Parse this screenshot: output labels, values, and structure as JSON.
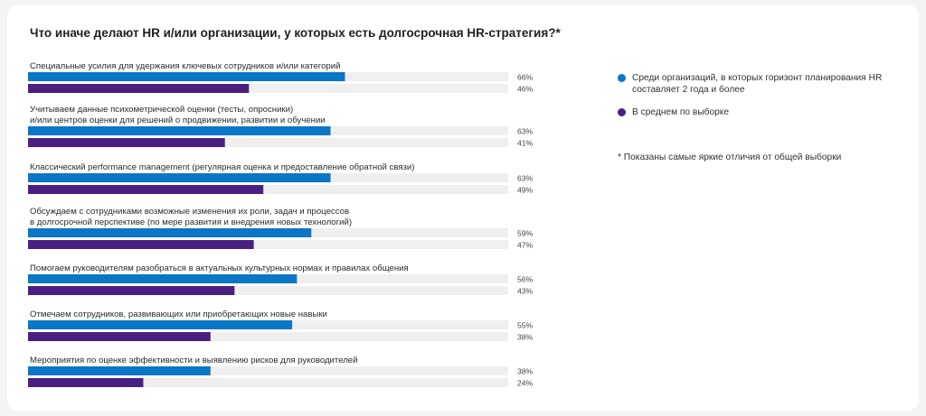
{
  "title": "Что иначе делают HR и/или организации, у которых есть долгосрочная HR-стратегия?*",
  "footnote": "* Показаны самые яркие отличия от общей выборки",
  "colors": {
    "blue": "#0a76c6",
    "purple": "#4b1f82",
    "track": "#efefef"
  },
  "chart_data": {
    "type": "bar",
    "orientation": "horizontal",
    "xlim": [
      0,
      100
    ],
    "legend_position": "right",
    "categories": [
      [
        "Специальные усилия для удержания ключевых сотрудников и/или категорий"
      ],
      [
        "Учитываем данные психометрической оценки (тесты, опросники)",
        "и/или центров оценки для решений о продвижении, развитии и обучении"
      ],
      [
        "Классический performance management (регулярная оценка и предоставление обратной связи)"
      ],
      [
        "Обсуждаем с сотрудниками возможные изменения их роли, задач и процессов",
        "в долгосрочной перспективе (по мере развития и внедрения новых технологий)"
      ],
      [
        "Помогаем руководителям разобраться в актуальных культурных нормах и правилах общения"
      ],
      [
        "Отмечаем сотрудников, развивающих или приобретающих новые навыки"
      ],
      [
        "Мероприятия по оценке эффективности и выявлению рисков для руководителей"
      ]
    ],
    "series": [
      {
        "name": "Среди организаций, в которых горизонт планирования HR составляет 2 года и более",
        "color": "#0a76c6",
        "values": [
          66,
          63,
          63,
          59,
          56,
          55,
          38
        ]
      },
      {
        "name": "В среднем по выборке",
        "color": "#4b1f82",
        "values": [
          46,
          41,
          49,
          47,
          43,
          38,
          24
        ]
      }
    ]
  }
}
